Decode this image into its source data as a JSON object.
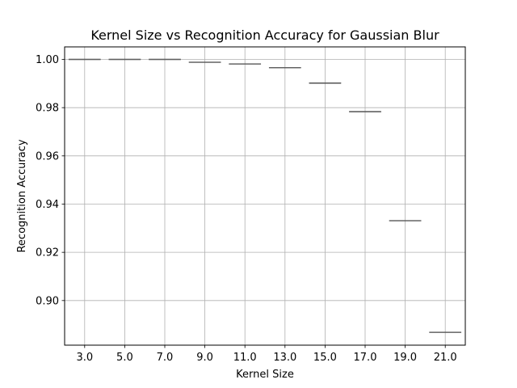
{
  "chart_data": {
    "type": "box",
    "title": "Kernel Size vs Recognition Accuracy for Gaussian Blur",
    "xlabel": "Kernel Size",
    "ylabel": "Recognition Accuracy",
    "categories": [
      "3.0",
      "5.0",
      "7.0",
      "9.0",
      "11.0",
      "13.0",
      "15.0",
      "17.0",
      "19.0",
      "21.0"
    ],
    "values": [
      1.0,
      1.0,
      1.0,
      0.9988,
      0.9981,
      0.9966,
      0.9902,
      0.9783,
      0.9331,
      0.8868
    ],
    "ylim": [
      0.8815,
      1.0052
    ],
    "yticks": [
      0.9,
      0.92,
      0.94,
      0.96,
      0.98,
      1.0
    ],
    "ytick_labels": [
      "0.90",
      "0.92",
      "0.94",
      "0.96",
      "0.98",
      "1.00"
    ],
    "grid": true,
    "box_color": "#3a3a3a"
  }
}
